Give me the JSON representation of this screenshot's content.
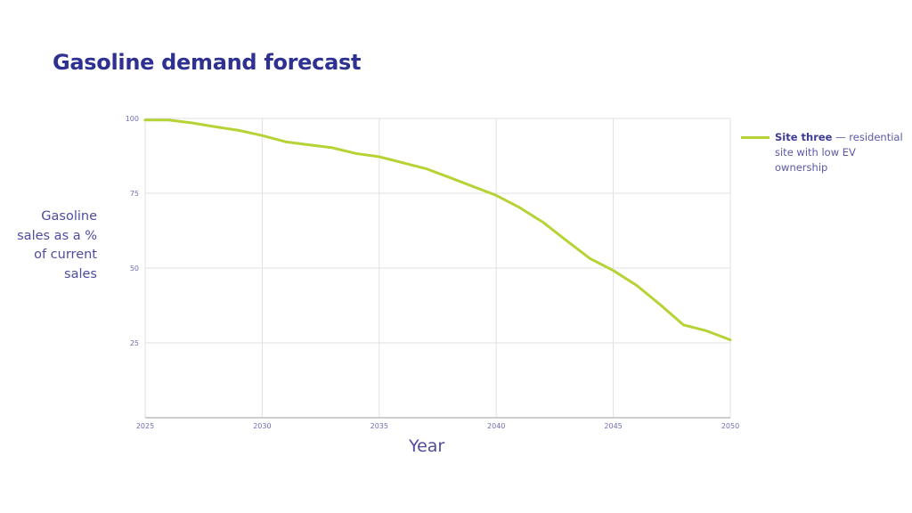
{
  "title": "Gasoline demand forecast",
  "y_axis_label": "Gasoline sales as a % of current sales",
  "x_axis_label": "Year",
  "legend": {
    "series_name": "Site three",
    "series_desc": " — residential site with low EV ownership",
    "color": "#b5d334"
  },
  "colors": {
    "title": "#2e3192",
    "text": "#4e4c9e",
    "line": "#b5d334",
    "grid": "#e0e0e0"
  },
  "chart_data": {
    "type": "line",
    "title": "Gasoline demand forecast",
    "xlabel": "Year",
    "ylabel": "Gasoline sales as a % of current sales",
    "x_ticks": [
      2025,
      2030,
      2035,
      2040,
      2045,
      2050
    ],
    "y_ticks": [
      25,
      50,
      75,
      100
    ],
    "xlim": [
      2025,
      2050
    ],
    "ylim": [
      0,
      100
    ],
    "grid": true,
    "legend_position": "right",
    "series": [
      {
        "name": "Site three — residential site with low EV ownership",
        "x": [
          2025,
          2026,
          2027,
          2028,
          2029,
          2030,
          2031,
          2032,
          2033,
          2034,
          2035,
          2036,
          2037,
          2038,
          2039,
          2040,
          2041,
          2042,
          2043,
          2044,
          2045,
          2046,
          2047,
          2048,
          2049,
          2050
        ],
        "values": [
          99.5,
          99.5,
          98.5,
          97.2,
          96,
          94.3,
          92.2,
          91.2,
          90.2,
          88.3,
          87.2,
          85.2,
          83.2,
          80.3,
          77.3,
          74.3,
          70.2,
          65.3,
          59.2,
          53.2,
          49.2,
          44.2,
          37.8,
          31,
          29,
          26
        ]
      }
    ]
  }
}
